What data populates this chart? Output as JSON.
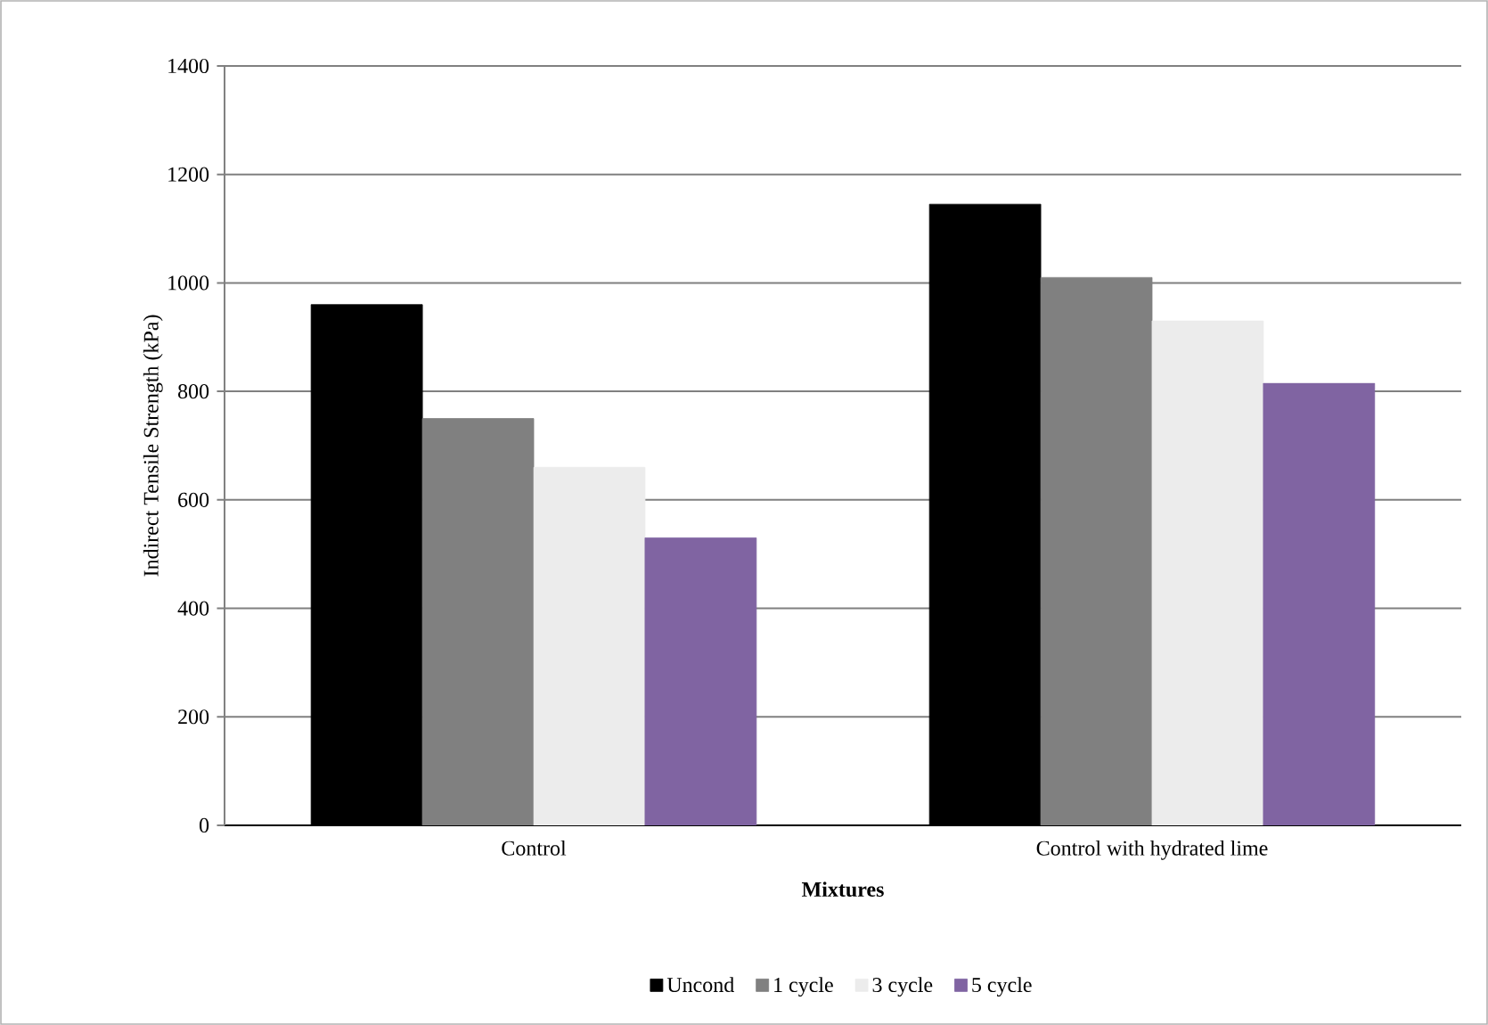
{
  "chart_data": {
    "type": "bar",
    "xlabel": "Mixtures",
    "ylabel": "Indirect Tensile Strength (kPa)",
    "categories": [
      "Control",
      "Control with hydrated lime"
    ],
    "series": [
      {
        "name": "Uncond",
        "color": "#000000",
        "values": [
          960,
          1145
        ]
      },
      {
        "name": "1 cycle",
        "color": "#808080",
        "values": [
          750,
          1010
        ]
      },
      {
        "name": "3 cycle",
        "color": "#ececec",
        "values": [
          660,
          930
        ]
      },
      {
        "name": "5 cycle",
        "color": "#8064a2",
        "values": [
          530,
          815
        ]
      }
    ],
    "ylim": [
      0,
      1400
    ],
    "yticks": [
      0,
      200,
      400,
      600,
      800,
      1000,
      1200,
      1400
    ],
    "grid": "y",
    "legend": "bottom"
  }
}
